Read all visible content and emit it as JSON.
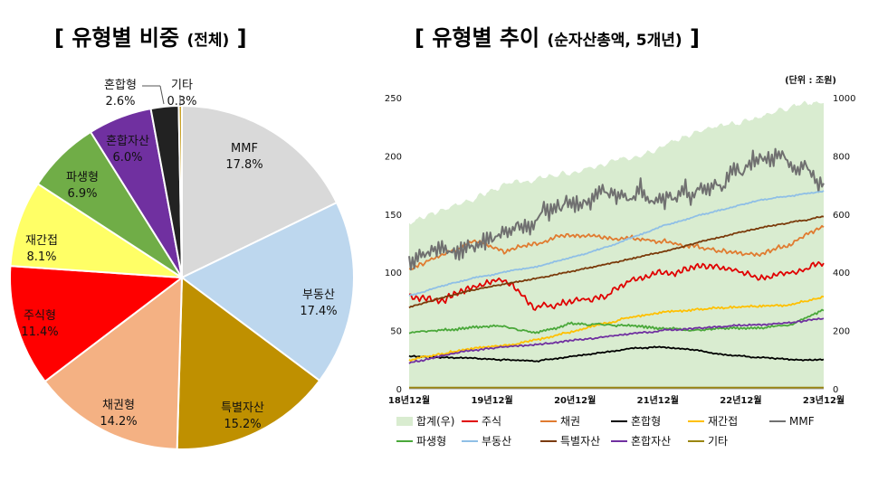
{
  "left_title": {
    "main": "[ 유형별 비중",
    "sub": "(전체)",
    "end": "]"
  },
  "right_title": {
    "main": "[ 유형별 추이",
    "sub": "(순자산총액, 5개년)",
    "end": "]"
  },
  "unit": "(단위 : 조원)",
  "chart_data": [
    {
      "type": "pie",
      "title": "유형별 비중 (전체)",
      "slices": [
        {
          "name": "MMF",
          "value": 17.8,
          "label": "17.8%",
          "color": "#d9d9d9"
        },
        {
          "name": "부동산",
          "value": 17.4,
          "label": "17.4%",
          "color": "#bdd7ee"
        },
        {
          "name": "특별자산",
          "value": 15.2,
          "label": "15.2%",
          "color": "#bf9000"
        },
        {
          "name": "채권형",
          "value": 14.2,
          "label": "14.2%",
          "color": "#f4b183"
        },
        {
          "name": "주식형",
          "value": 11.4,
          "label": "11.4%",
          "color": "#ff0000"
        },
        {
          "name": "재간접",
          "value": 8.1,
          "label": "8.1%",
          "color": "#ffff66"
        },
        {
          "name": "파생형",
          "value": 6.9,
          "label": "6.9%",
          "color": "#70ad47"
        },
        {
          "name": "혼합자산",
          "value": 6.0,
          "label": "6.0%",
          "color": "#7030a0"
        },
        {
          "name": "혼합형",
          "value": 2.6,
          "label": "2.6%",
          "color": "#222222"
        },
        {
          "name": "기타",
          "value": 0.3,
          "label": "0.3%",
          "color": "#c9a227"
        }
      ]
    },
    {
      "type": "line",
      "title": "유형별 추이 (순자산총액, 5개년)",
      "x_ticks": [
        "18년12월",
        "19년12월",
        "20년12월",
        "21년12월",
        "22년12월",
        "23년12월"
      ],
      "ylim_left": [
        0,
        250
      ],
      "yticks_left": [
        0,
        50,
        100,
        150,
        200,
        250
      ],
      "ylim_right": [
        0,
        1000
      ],
      "yticks_right": [
        0,
        200,
        400,
        600,
        800,
        1000
      ],
      "total_area": {
        "name": "합계(우)",
        "color": "#d9ecd0",
        "values": [
          570,
          610,
          655,
          700,
          720,
          740,
          765,
          800,
          840,
          880,
          905,
          935,
          975,
          990
        ]
      },
      "series": [
        {
          "name": "주식",
          "color": "#e00000",
          "values": [
            80,
            76,
            88,
            95,
            68,
            75,
            78,
            96,
            100,
            104,
            102,
            96,
            100,
            110
          ]
        },
        {
          "name": "채권",
          "color": "#e07b30",
          "values": [
            103,
            115,
            127,
            118,
            125,
            132,
            130,
            128,
            128,
            122,
            118,
            115,
            125,
            140
          ]
        },
        {
          "name": "혼합형",
          "color": "#000000",
          "values": [
            28,
            27,
            26,
            25,
            24,
            27,
            31,
            35,
            36,
            33,
            29,
            27,
            25,
            25
          ]
        },
        {
          "name": "재간접",
          "color": "#ffc000",
          "values": [
            25,
            30,
            35,
            37,
            42,
            48,
            55,
            62,
            66,
            68,
            70,
            71,
            72,
            79
          ]
        },
        {
          "name": "MMF",
          "color": "#707070",
          "values": [
            110,
            118,
            122,
            135,
            150,
            160,
            162,
            170,
            168,
            165,
            180,
            200,
            195,
            172
          ]
        },
        {
          "name": "파생형",
          "color": "#4aa83a",
          "values": [
            48,
            50,
            53,
            54,
            47,
            56,
            55,
            54,
            52,
            50,
            52,
            53,
            55,
            68
          ]
        },
        {
          "name": "부동산",
          "color": "#8fbfe6",
          "values": [
            80,
            88,
            95,
            100,
            105,
            112,
            120,
            130,
            140,
            148,
            155,
            162,
            166,
            170
          ]
        },
        {
          "name": "특별자산",
          "color": "#7a3a0a",
          "values": [
            70,
            78,
            85,
            90,
            95,
            100,
            106,
            112,
            118,
            125,
            132,
            138,
            143,
            148
          ]
        },
        {
          "name": "혼합자산",
          "color": "#7030a0",
          "values": [
            22,
            28,
            33,
            36,
            38,
            41,
            44,
            47,
            50,
            52,
            54,
            55,
            57,
            60
          ]
        },
        {
          "name": "기타",
          "color": "#9a8510",
          "values": [
            1,
            1,
            1,
            1,
            1,
            1,
            1,
            1,
            1,
            1,
            1,
            1,
            1,
            1
          ]
        }
      ]
    }
  ]
}
